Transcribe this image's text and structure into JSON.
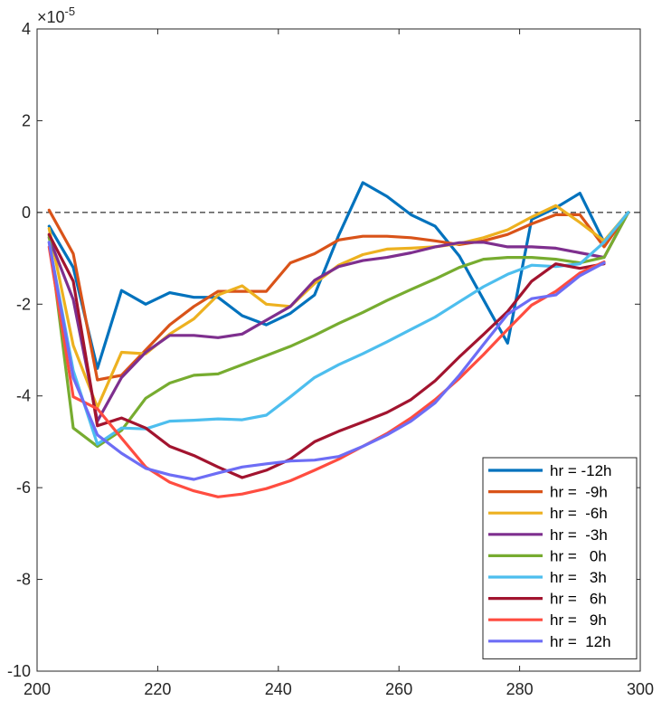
{
  "chart_data": {
    "type": "line",
    "title": "",
    "xlabel": "",
    "ylabel": "",
    "xlim": [
      200,
      300
    ],
    "ylim": [
      -10,
      4
    ],
    "x_ticks": [
      200,
      220,
      240,
      260,
      280,
      300
    ],
    "y_ticks": [
      -10,
      -8,
      -6,
      -4,
      -2,
      0,
      2,
      4
    ],
    "y_exponent_label": "×10",
    "y_exponent_power": "-5",
    "reference_line": {
      "y": 0,
      "style": "dashed",
      "color": "#000000"
    },
    "grid": false,
    "legend_position": "bottom-right",
    "series": [
      {
        "name": "hr = -12h",
        "color": "#0072BD",
        "x": [
          202,
          206,
          210,
          214,
          218,
          222,
          226,
          230,
          234,
          238,
          242,
          246,
          250,
          254,
          258,
          262,
          266,
          270,
          274,
          278,
          282,
          286,
          290,
          294,
          298
        ],
        "y": [
          -0.3,
          -1.2,
          -3.4,
          -1.7,
          -2.0,
          -1.75,
          -1.85,
          -1.85,
          -2.25,
          -2.45,
          -2.2,
          -1.8,
          -0.5,
          0.65,
          0.35,
          -0.05,
          -0.3,
          -0.95,
          -1.9,
          -2.85,
          -0.15,
          0.1,
          0.42,
          -0.65,
          0.0
        ]
      },
      {
        "name": "hr =  -9h",
        "color": "#D95319",
        "x": [
          202,
          206,
          210,
          214,
          218,
          222,
          226,
          230,
          234,
          238,
          242,
          246,
          250,
          254,
          258,
          262,
          266,
          270,
          274,
          278,
          282,
          286,
          290,
          294,
          298
        ],
        "y": [
          0.05,
          -0.9,
          -3.65,
          -3.55,
          -3.0,
          -2.45,
          -2.05,
          -1.72,
          -1.72,
          -1.72,
          -1.1,
          -0.9,
          -0.6,
          -0.52,
          -0.52,
          -0.55,
          -0.62,
          -0.7,
          -0.62,
          -0.48,
          -0.25,
          -0.05,
          -0.05,
          -0.75,
          0.0
        ]
      },
      {
        "name": "hr =  -6h",
        "color": "#EDB120",
        "x": [
          202,
          206,
          210,
          214,
          218,
          222,
          226,
          230,
          234,
          238,
          242,
          246,
          250,
          254,
          258,
          262,
          266,
          270,
          274,
          278,
          282,
          286,
          290,
          294,
          298
        ],
        "y": [
          -0.35,
          -2.9,
          -4.25,
          -3.05,
          -3.08,
          -2.65,
          -2.32,
          -1.8,
          -1.6,
          -2.0,
          -2.05,
          -1.55,
          -1.15,
          -0.92,
          -0.8,
          -0.78,
          -0.75,
          -0.68,
          -0.55,
          -0.38,
          -0.1,
          0.15,
          -0.22,
          -0.62,
          0.0
        ]
      },
      {
        "name": "hr =  -3h",
        "color": "#7E2F8E",
        "x": [
          202,
          206,
          210,
          214,
          218,
          222,
          226,
          230,
          234,
          238,
          242,
          246,
          250,
          254,
          258,
          262,
          266,
          270,
          274,
          278,
          282,
          286,
          290,
          294,
          298
        ],
        "y": [
          -0.55,
          -1.9,
          -4.55,
          -3.6,
          -3.05,
          -2.68,
          -2.68,
          -2.73,
          -2.65,
          -2.35,
          -2.05,
          -1.48,
          -1.18,
          -1.05,
          -0.98,
          -0.88,
          -0.75,
          -0.66,
          -0.65,
          -0.75,
          -0.75,
          -0.78,
          -0.88,
          -0.98,
          0.0
        ]
      },
      {
        "name": "hr =   0h",
        "color": "#77AC30",
        "x": [
          202,
          206,
          210,
          214,
          218,
          222,
          226,
          230,
          234,
          238,
          242,
          246,
          250,
          254,
          258,
          262,
          266,
          270,
          274,
          278,
          282,
          286,
          290,
          294,
          298
        ],
        "y": [
          -0.5,
          -4.7,
          -5.1,
          -4.75,
          -4.05,
          -3.72,
          -3.55,
          -3.52,
          -3.32,
          -3.12,
          -2.92,
          -2.68,
          -2.42,
          -2.18,
          -1.92,
          -1.68,
          -1.45,
          -1.2,
          -1.02,
          -0.98,
          -0.98,
          -1.02,
          -1.1,
          -0.98,
          0.0
        ]
      },
      {
        "name": "hr =   3h",
        "color": "#4DBEEE",
        "x": [
          202,
          206,
          210,
          214,
          218,
          222,
          226,
          230,
          234,
          238,
          242,
          246,
          250,
          254,
          258,
          262,
          266,
          270,
          274,
          278,
          282,
          286,
          290,
          294,
          298
        ],
        "y": [
          -0.65,
          -3.45,
          -5.05,
          -4.7,
          -4.72,
          -4.55,
          -4.53,
          -4.5,
          -4.52,
          -4.42,
          -4.02,
          -3.6,
          -3.32,
          -3.08,
          -2.82,
          -2.55,
          -2.28,
          -1.95,
          -1.62,
          -1.35,
          -1.15,
          -1.18,
          -1.12,
          -0.65,
          0.0
        ]
      },
      {
        "name": "hr =   6h",
        "color": "#A2142F",
        "x": [
          202,
          206,
          210,
          214,
          218,
          222,
          226,
          230,
          234,
          238,
          242,
          246,
          250,
          254,
          258,
          262,
          266,
          270,
          274,
          278,
          282,
          286,
          290,
          294,
          298
        ],
        "y": [
          -0.48,
          -1.5,
          -4.65,
          -4.48,
          -4.7,
          -5.1,
          -5.3,
          -5.55,
          -5.78,
          -5.62,
          -5.38,
          -5.0,
          -4.77,
          -4.57,
          -4.36,
          -4.08,
          -3.67,
          -3.15,
          -2.66,
          -2.16,
          -1.5,
          -1.12,
          -1.22,
          -1.12,
          null
        ]
      },
      {
        "name": "hr =   9h",
        "color": "#FF4D40",
        "x": [
          202,
          206,
          210,
          214,
          218,
          222,
          226,
          230,
          234,
          238,
          242,
          246,
          250,
          254,
          258,
          262,
          266,
          270,
          274,
          278,
          282,
          286,
          290,
          294,
          298
        ],
        "y": [
          -0.75,
          -4.02,
          -4.28,
          -4.92,
          -5.55,
          -5.88,
          -6.07,
          -6.2,
          -6.14,
          -6.02,
          -5.85,
          -5.62,
          -5.38,
          -5.1,
          -4.82,
          -4.48,
          -4.08,
          -3.62,
          -3.1,
          -2.55,
          -2.02,
          -1.72,
          -1.32,
          -1.08,
          null
        ]
      },
      {
        "name": "hr =  12h",
        "color": "#6D6DF5",
        "x": [
          202,
          206,
          210,
          214,
          218,
          222,
          226,
          230,
          234,
          238,
          242,
          246,
          250,
          254,
          258,
          262,
          266,
          270,
          274,
          278,
          282,
          286,
          290,
          294,
          298
        ],
        "y": [
          -0.65,
          -3.6,
          -4.85,
          -5.25,
          -5.58,
          -5.72,
          -5.82,
          -5.68,
          -5.55,
          -5.48,
          -5.42,
          -5.4,
          -5.32,
          -5.1,
          -4.85,
          -4.55,
          -4.15,
          -3.55,
          -2.88,
          -2.22,
          -1.88,
          -1.8,
          -1.38,
          -1.1,
          null
        ]
      }
    ]
  }
}
